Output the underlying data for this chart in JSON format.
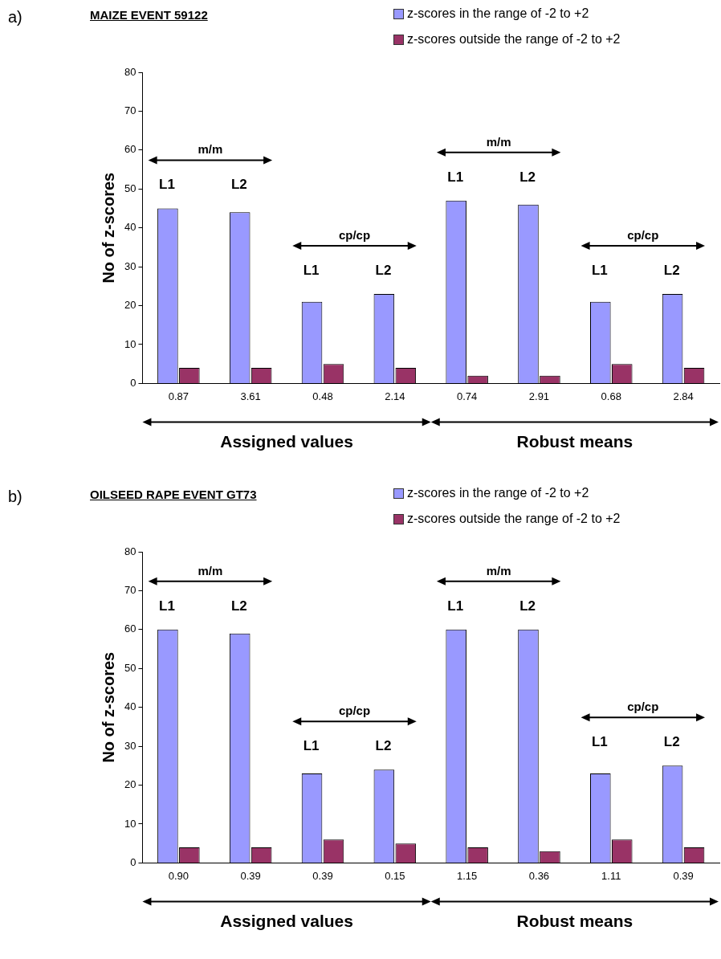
{
  "chart_data": [
    {
      "type": "bar",
      "title": "MAIZE EVENT 59122",
      "ylabel": "No of z-scores",
      "categories": [
        "0.87",
        "3.61",
        "0.48",
        "2.14",
        "0.74",
        "2.91",
        "0.68",
        "2.84"
      ],
      "series": [
        {
          "name": "z-scores in the range of -2 to +2",
          "color": "#9999ff",
          "values": [
            45,
            44,
            21,
            23,
            47,
            46,
            21,
            23
          ]
        },
        {
          "name": "z-scores outside the range of -2 to +2",
          "color": "#993366",
          "values": [
            4,
            4,
            5,
            4,
            2,
            2,
            5,
            4
          ]
        }
      ],
      "ylim": [
        0,
        80
      ],
      "yticks": [
        0,
        10,
        20,
        30,
        40,
        50,
        60,
        70,
        80
      ],
      "grid": false,
      "legend": "top right",
      "annotations": [
        "a)",
        "m/m",
        "cp/cp",
        "m/m",
        "cp/cp",
        "Assigned values",
        "Robust means",
        "L1",
        "L2",
        "L1",
        "L2",
        "L1",
        "L2",
        "L1",
        "L2"
      ]
    },
    {
      "type": "bar",
      "title": "OILSEED RAPE EVENT GT73",
      "ylabel": "No of z-scores",
      "categories": [
        "0.90",
        "0.39",
        "0.39",
        "0.15",
        "1.15",
        "0.36",
        "1.11",
        "0.39"
      ],
      "series": [
        {
          "name": "z-scores in the range of -2 to +2",
          "color": "#9999ff",
          "values": [
            60,
            59,
            23,
            24,
            60,
            60,
            23,
            25
          ]
        },
        {
          "name": "z-scores outside the range of -2 to +2",
          "color": "#993366",
          "values": [
            4,
            4,
            6,
            5,
            4,
            3,
            6,
            4
          ]
        }
      ],
      "ylim": [
        0,
        80
      ],
      "yticks": [
        0,
        10,
        20,
        30,
        40,
        50,
        60,
        70,
        80
      ],
      "grid": false,
      "legend": "top right",
      "annotations": [
        "b)",
        "m/m",
        "cp/cp",
        "m/m",
        "cp/cp",
        "Assigned values",
        "Robust means",
        "L1",
        "L2",
        "L1",
        "L2",
        "L1",
        "L2",
        "L1",
        "L2"
      ]
    }
  ]
}
